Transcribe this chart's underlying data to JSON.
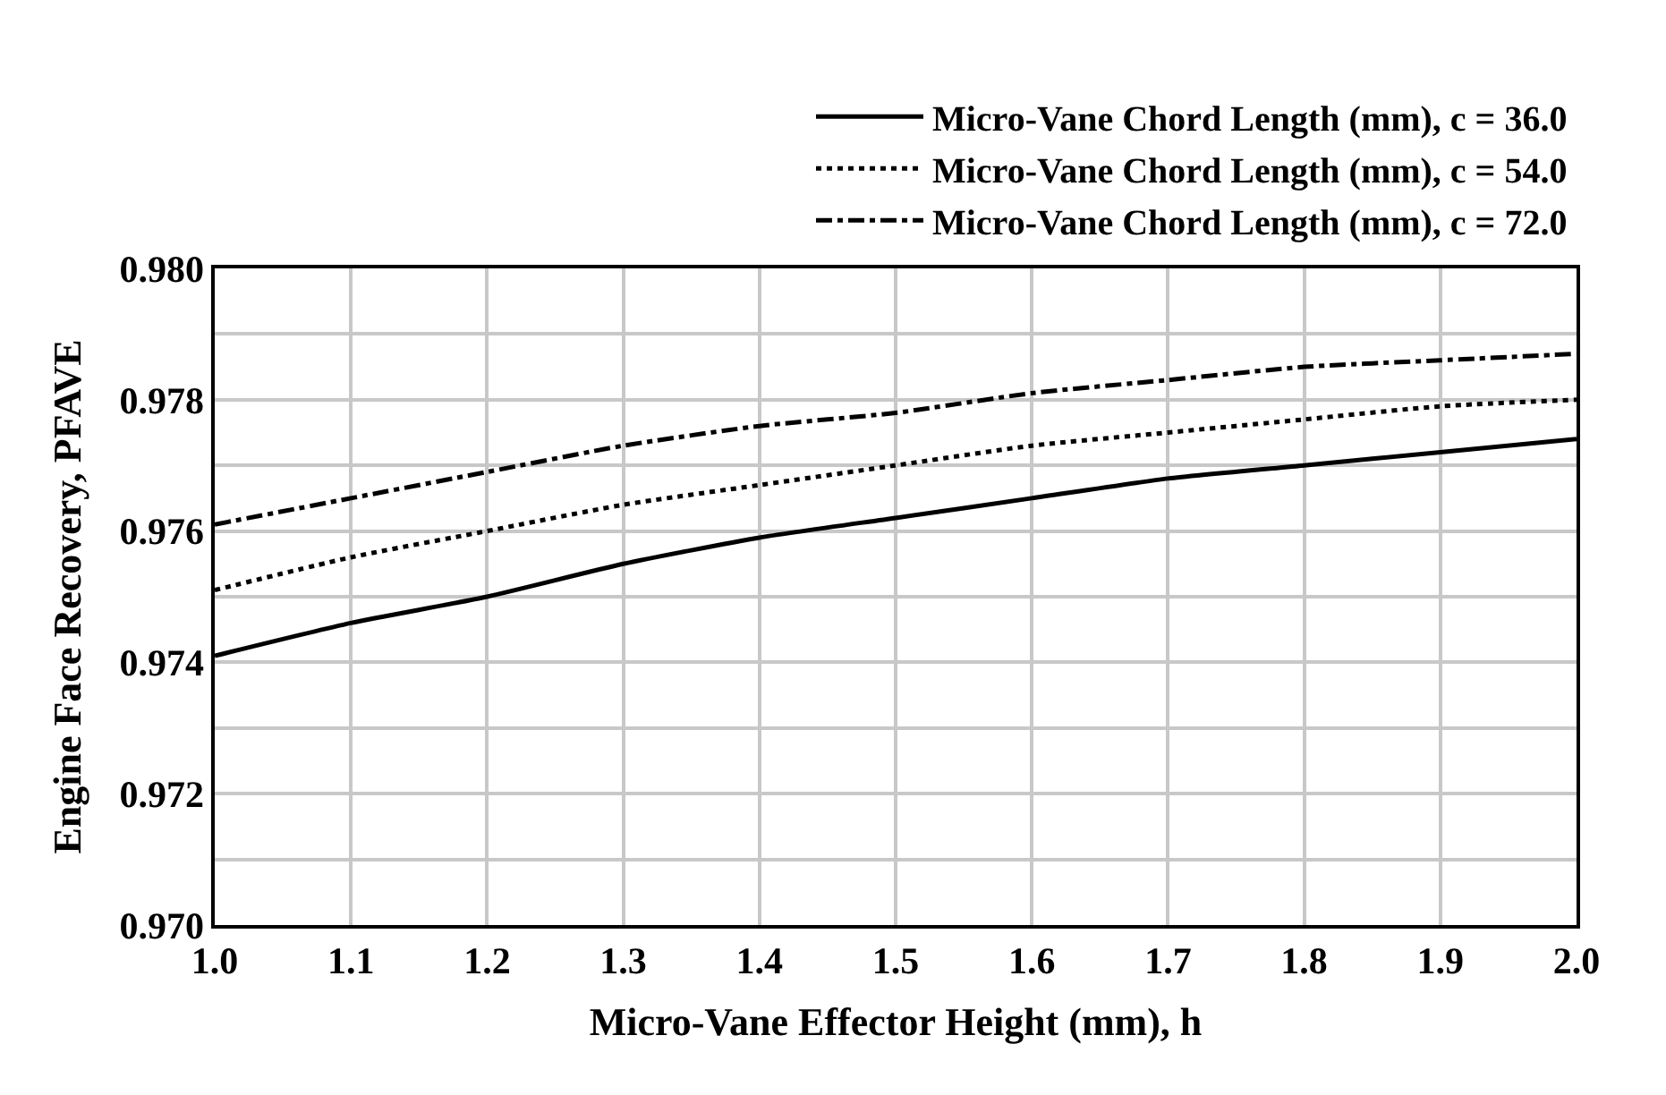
{
  "chart_data": {
    "type": "line",
    "xlabel": "Micro-Vane Effector Height (mm), h",
    "ylabel": "Engine Face Recovery, PFAVE",
    "x": [
      1.0,
      1.1,
      1.2,
      1.3,
      1.4,
      1.5,
      1.6,
      1.7,
      1.8,
      1.9,
      2.0
    ],
    "series": [
      {
        "name": "Micro-Vane Chord Length (mm), c = 36.0",
        "color": "#000000",
        "line_style": "solid",
        "values": [
          0.9741,
          0.9746,
          0.975,
          0.9755,
          0.9759,
          0.9762,
          0.9765,
          0.9768,
          0.977,
          0.9772,
          0.9774
        ]
      },
      {
        "name": "Micro-Vane Chord Length (mm), c = 54.0",
        "color": "#000000",
        "line_style": "dotted",
        "values": [
          0.9751,
          0.9756,
          0.976,
          0.9764,
          0.9767,
          0.977,
          0.9773,
          0.9775,
          0.9777,
          0.9779,
          0.978
        ]
      },
      {
        "name": "Micro-Vane Chord Length (mm), c = 72.0",
        "color": "#000000",
        "line_style": "dashdot",
        "values": [
          0.9761,
          0.9765,
          0.9769,
          0.9773,
          0.9776,
          0.9778,
          0.9781,
          0.9783,
          0.9785,
          0.9786,
          0.9787
        ]
      }
    ],
    "xlim": [
      1.0,
      2.0
    ],
    "xticks": [
      {
        "value": 1.0,
        "label": "1.0"
      },
      1.1,
      1.2,
      1.3,
      1.4,
      1.5,
      1.6,
      1.7,
      1.8,
      1.9,
      {
        "value": 2.0,
        "label": "2.0"
      }
    ],
    "ylim": [
      0.97,
      0.98
    ],
    "yticks": [
      {
        "value": 0.97,
        "label": "0.970"
      },
      {
        "value": 0.971,
        "label": null
      },
      0.972,
      {
        "value": 0.973,
        "label": null
      },
      0.974,
      {
        "value": 0.975,
        "label": null
      },
      0.976,
      {
        "value": 0.977,
        "label": null
      },
      0.978,
      {
        "value": 0.979,
        "label": null
      },
      {
        "value": 0.98,
        "label": "0.980"
      }
    ],
    "grid": true,
    "legend": "top right",
    "marker": "none"
  }
}
